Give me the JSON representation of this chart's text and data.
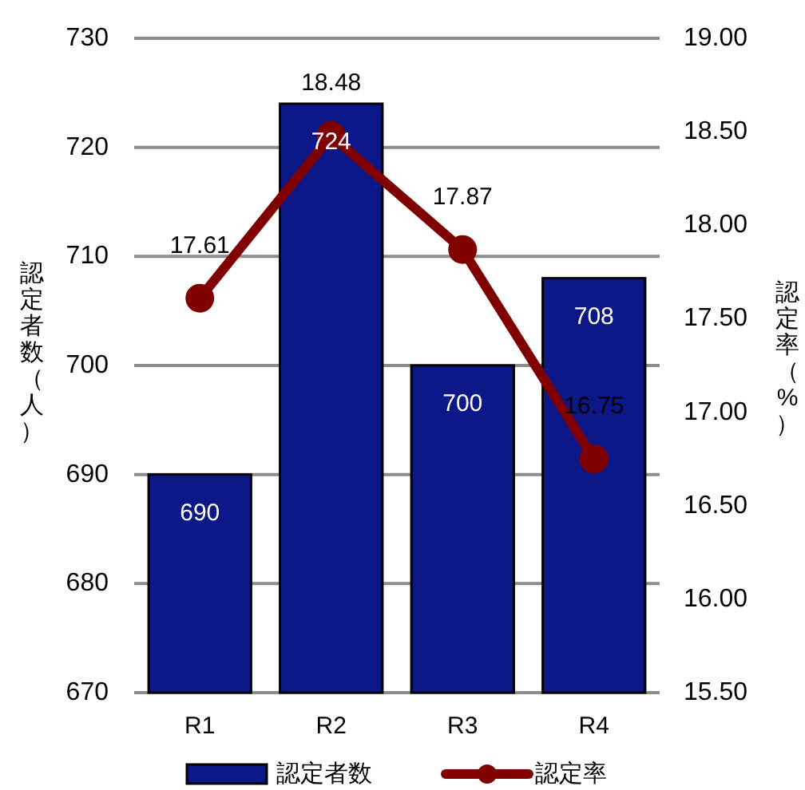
{
  "chart_data": {
    "type": "bar",
    "categories": [
      "R1",
      "R2",
      "R3",
      "R4"
    ],
    "series": [
      {
        "name": "認定者数",
        "type": "bar",
        "color": "#0c1788",
        "values": [
          690,
          724,
          700,
          708
        ]
      },
      {
        "name": "認定率",
        "type": "line",
        "axis": "y2",
        "color": "#800000",
        "values": [
          17.61,
          18.48,
          17.87,
          16.75
        ]
      }
    ],
    "ylabel": "認定者数（人）",
    "y2label": "認定率（%）",
    "ylim": [
      670,
      730
    ],
    "yticks": [
      670,
      680,
      690,
      700,
      710,
      720,
      730
    ],
    "y2lim": [
      15.5,
      19
    ],
    "y2ticks": [
      {
        "value": 15.5,
        "label": "15.50"
      },
      {
        "value": 16,
        "label": "16.00"
      },
      {
        "value": 16.5,
        "label": "16.50"
      },
      {
        "value": 17,
        "label": "17.00"
      },
      {
        "value": 17.5,
        "label": "17.50"
      },
      {
        "value": 18,
        "label": "18.00"
      },
      {
        "value": 18.5,
        "label": "18.50"
      },
      {
        "value": 19,
        "label": "19.00"
      }
    ],
    "data_labels": true,
    "grid": "y",
    "legend": "bottom",
    "marker": "circle"
  }
}
